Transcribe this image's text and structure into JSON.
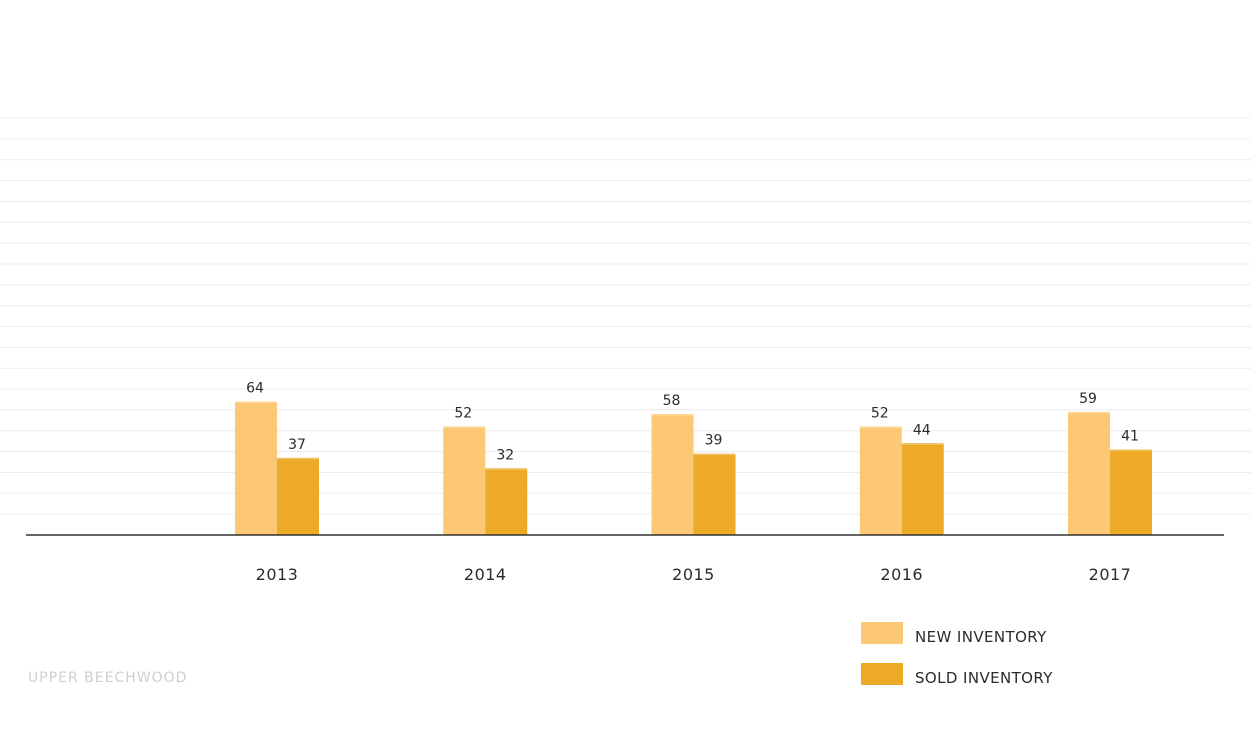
{
  "chart_data": {
    "type": "bar",
    "categories": [
      "2013",
      "2014",
      "2015",
      "2016",
      "2017"
    ],
    "series": [
      {
        "name": "NEW INVENTORY",
        "values": [
          64,
          52,
          58,
          52,
          59
        ],
        "color": "#fdc875"
      },
      {
        "name": "SOLD INVENTORY",
        "values": [
          37,
          32,
          39,
          44,
          41
        ],
        "color": "#ecaa26"
      }
    ],
    "ylim": [
      0,
      200
    ],
    "grid": true,
    "legend_position": "bottom-right",
    "title": "",
    "xlabel": "",
    "ylabel": ""
  },
  "footer": {
    "label": "UPPER BEECHWOOD"
  },
  "colors": {
    "axis": "#333333",
    "grid": "#ececec"
  }
}
